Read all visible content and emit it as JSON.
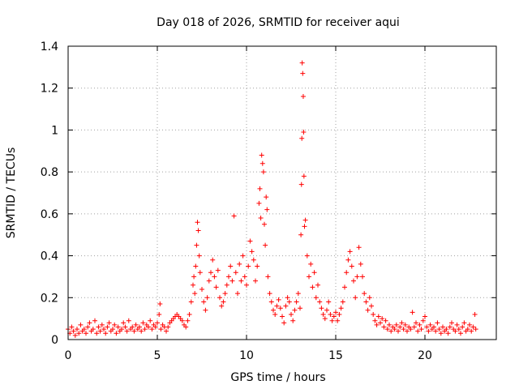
{
  "chart_data": {
    "type": "scatter",
    "title": "Day 018 of 2026, SRMTID for receiver aqui",
    "xlabel": "GPS time / hours",
    "ylabel": "SRMTID / TECUs",
    "xlim": [
      0,
      24
    ],
    "ylim": [
      0,
      1.4
    ],
    "xticks": [
      0,
      5,
      10,
      15,
      20
    ],
    "yticks": [
      0,
      0.2,
      0.4,
      0.6,
      0.8,
      1,
      1.2,
      1.4
    ],
    "xtick_labels": [
      "0",
      "5",
      "10",
      "15",
      "20"
    ],
    "ytick_labels": [
      "0",
      "0.2",
      "0.4",
      "0.6",
      "0.8",
      "1",
      "1.2",
      "1.4"
    ],
    "grid": true,
    "marker": "+",
    "color": "#ff0000",
    "series": [
      {
        "name": "SRMTID",
        "points": [
          [
            0.0,
            0.05
          ],
          [
            0.1,
            0.03
          ],
          [
            0.2,
            0.06
          ],
          [
            0.3,
            0.04
          ],
          [
            0.4,
            0.02
          ],
          [
            0.5,
            0.05
          ],
          [
            0.6,
            0.03
          ],
          [
            0.7,
            0.07
          ],
          [
            0.8,
            0.04
          ],
          [
            0.9,
            0.05
          ],
          [
            1.0,
            0.03
          ],
          [
            1.1,
            0.06
          ],
          [
            1.2,
            0.08
          ],
          [
            1.3,
            0.04
          ],
          [
            1.4,
            0.05
          ],
          [
            1.5,
            0.09
          ],
          [
            1.6,
            0.03
          ],
          [
            1.7,
            0.06
          ],
          [
            1.8,
            0.04
          ],
          [
            1.9,
            0.07
          ],
          [
            2.0,
            0.05
          ],
          [
            2.1,
            0.03
          ],
          [
            2.2,
            0.06
          ],
          [
            2.3,
            0.08
          ],
          [
            2.4,
            0.04
          ],
          [
            2.5,
            0.05
          ],
          [
            2.6,
            0.07
          ],
          [
            2.7,
            0.03
          ],
          [
            2.8,
            0.06
          ],
          [
            2.9,
            0.04
          ],
          [
            3.0,
            0.05
          ],
          [
            3.1,
            0.08
          ],
          [
            3.2,
            0.06
          ],
          [
            3.3,
            0.04
          ],
          [
            3.4,
            0.09
          ],
          [
            3.5,
            0.05
          ],
          [
            3.6,
            0.06
          ],
          [
            3.7,
            0.04
          ],
          [
            3.8,
            0.07
          ],
          [
            3.9,
            0.05
          ],
          [
            4.0,
            0.06
          ],
          [
            4.1,
            0.04
          ],
          [
            4.2,
            0.08
          ],
          [
            4.3,
            0.05
          ],
          [
            4.4,
            0.07
          ],
          [
            4.5,
            0.06
          ],
          [
            4.6,
            0.09
          ],
          [
            4.7,
            0.05
          ],
          [
            4.8,
            0.07
          ],
          [
            4.9,
            0.06
          ],
          [
            5.0,
            0.08
          ],
          [
            5.1,
            0.12
          ],
          [
            5.15,
            0.17
          ],
          [
            5.2,
            0.05
          ],
          [
            5.3,
            0.07
          ],
          [
            5.4,
            0.06
          ],
          [
            5.5,
            0.04
          ],
          [
            5.6,
            0.06
          ],
          [
            5.7,
            0.08
          ],
          [
            5.8,
            0.09
          ],
          [
            5.9,
            0.1
          ],
          [
            6.0,
            0.11
          ],
          [
            6.1,
            0.12
          ],
          [
            6.2,
            0.11
          ],
          [
            6.3,
            0.1
          ],
          [
            6.4,
            0.09
          ],
          [
            6.5,
            0.07
          ],
          [
            6.6,
            0.06
          ],
          [
            6.7,
            0.09
          ],
          [
            6.8,
            0.12
          ],
          [
            6.9,
            0.18
          ],
          [
            7.0,
            0.26
          ],
          [
            7.05,
            0.3
          ],
          [
            7.1,
            0.22
          ],
          [
            7.15,
            0.35
          ],
          [
            7.2,
            0.45
          ],
          [
            7.25,
            0.56
          ],
          [
            7.3,
            0.52
          ],
          [
            7.35,
            0.4
          ],
          [
            7.4,
            0.32
          ],
          [
            7.5,
            0.24
          ],
          [
            7.6,
            0.18
          ],
          [
            7.7,
            0.14
          ],
          [
            7.8,
            0.2
          ],
          [
            7.9,
            0.28
          ],
          [
            8.0,
            0.32
          ],
          [
            8.1,
            0.38
          ],
          [
            8.2,
            0.3
          ],
          [
            8.3,
            0.25
          ],
          [
            8.4,
            0.33
          ],
          [
            8.5,
            0.2
          ],
          [
            8.6,
            0.16
          ],
          [
            8.7,
            0.18
          ],
          [
            8.8,
            0.22
          ],
          [
            8.9,
            0.26
          ],
          [
            9.0,
            0.3
          ],
          [
            9.1,
            0.35
          ],
          [
            9.2,
            0.28
          ],
          [
            9.3,
            0.59
          ],
          [
            9.4,
            0.32
          ],
          [
            9.5,
            0.22
          ],
          [
            9.6,
            0.36
          ],
          [
            9.7,
            0.28
          ],
          [
            9.8,
            0.4
          ],
          [
            9.9,
            0.3
          ],
          [
            10.0,
            0.26
          ],
          [
            10.1,
            0.35
          ],
          [
            10.2,
            0.47
          ],
          [
            10.3,
            0.42
          ],
          [
            10.4,
            0.38
          ],
          [
            10.5,
            0.28
          ],
          [
            10.6,
            0.35
          ],
          [
            10.7,
            0.65
          ],
          [
            10.75,
            0.72
          ],
          [
            10.8,
            0.58
          ],
          [
            10.85,
            0.88
          ],
          [
            10.9,
            0.84
          ],
          [
            10.95,
            0.8
          ],
          [
            11.0,
            0.55
          ],
          [
            11.05,
            0.45
          ],
          [
            11.1,
            0.68
          ],
          [
            11.15,
            0.62
          ],
          [
            11.2,
            0.3
          ],
          [
            11.3,
            0.22
          ],
          [
            11.4,
            0.18
          ],
          [
            11.5,
            0.14
          ],
          [
            11.6,
            0.12
          ],
          [
            11.7,
            0.16
          ],
          [
            11.8,
            0.19
          ],
          [
            11.9,
            0.15
          ],
          [
            12.0,
            0.11
          ],
          [
            12.1,
            0.08
          ],
          [
            12.2,
            0.16
          ],
          [
            12.3,
            0.2
          ],
          [
            12.4,
            0.18
          ],
          [
            12.5,
            0.12
          ],
          [
            12.6,
            0.09
          ],
          [
            12.7,
            0.14
          ],
          [
            12.8,
            0.18
          ],
          [
            12.9,
            0.22
          ],
          [
            13.0,
            0.15
          ],
          [
            13.05,
            0.5
          ],
          [
            13.08,
            0.74
          ],
          [
            13.1,
            0.96
          ],
          [
            13.12,
            1.32
          ],
          [
            13.15,
            1.27
          ],
          [
            13.18,
            1.16
          ],
          [
            13.2,
            0.99
          ],
          [
            13.22,
            0.78
          ],
          [
            13.25,
            0.54
          ],
          [
            13.3,
            0.57
          ],
          [
            13.4,
            0.4
          ],
          [
            13.5,
            0.3
          ],
          [
            13.6,
            0.36
          ],
          [
            13.7,
            0.25
          ],
          [
            13.8,
            0.32
          ],
          [
            13.9,
            0.2
          ],
          [
            14.0,
            0.26
          ],
          [
            14.1,
            0.18
          ],
          [
            14.2,
            0.15
          ],
          [
            14.3,
            0.12
          ],
          [
            14.4,
            0.1
          ],
          [
            14.5,
            0.14
          ],
          [
            14.6,
            0.18
          ],
          [
            14.7,
            0.12
          ],
          [
            14.8,
            0.09
          ],
          [
            14.9,
            0.11
          ],
          [
            15.0,
            0.13
          ],
          [
            15.1,
            0.09
          ],
          [
            15.2,
            0.12
          ],
          [
            15.3,
            0.15
          ],
          [
            15.4,
            0.18
          ],
          [
            15.5,
            0.25
          ],
          [
            15.6,
            0.32
          ],
          [
            15.7,
            0.38
          ],
          [
            15.8,
            0.42
          ],
          [
            15.9,
            0.35
          ],
          [
            16.0,
            0.28
          ],
          [
            16.1,
            0.2
          ],
          [
            16.2,
            0.3
          ],
          [
            16.3,
            0.44
          ],
          [
            16.4,
            0.36
          ],
          [
            16.5,
            0.3
          ],
          [
            16.6,
            0.22
          ],
          [
            16.7,
            0.18
          ],
          [
            16.8,
            0.14
          ],
          [
            16.9,
            0.2
          ],
          [
            17.0,
            0.16
          ],
          [
            17.1,
            0.12
          ],
          [
            17.2,
            0.09
          ],
          [
            17.3,
            0.07
          ],
          [
            17.4,
            0.11
          ],
          [
            17.5,
            0.08
          ],
          [
            17.6,
            0.1
          ],
          [
            17.7,
            0.06
          ],
          [
            17.8,
            0.09
          ],
          [
            17.9,
            0.05
          ],
          [
            18.0,
            0.07
          ],
          [
            18.1,
            0.04
          ],
          [
            18.2,
            0.06
          ],
          [
            18.3,
            0.05
          ],
          [
            18.4,
            0.07
          ],
          [
            18.5,
            0.04
          ],
          [
            18.6,
            0.06
          ],
          [
            18.7,
            0.08
          ],
          [
            18.8,
            0.05
          ],
          [
            18.9,
            0.07
          ],
          [
            19.0,
            0.04
          ],
          [
            19.1,
            0.06
          ],
          [
            19.2,
            0.05
          ],
          [
            19.3,
            0.13
          ],
          [
            19.4,
            0.06
          ],
          [
            19.5,
            0.08
          ],
          [
            19.6,
            0.04
          ],
          [
            19.7,
            0.07
          ],
          [
            19.8,
            0.05
          ],
          [
            19.9,
            0.09
          ],
          [
            20.0,
            0.11
          ],
          [
            20.1,
            0.06
          ],
          [
            20.2,
            0.04
          ],
          [
            20.3,
            0.07
          ],
          [
            20.4,
            0.05
          ],
          [
            20.5,
            0.06
          ],
          [
            20.6,
            0.04
          ],
          [
            20.7,
            0.08
          ],
          [
            20.8,
            0.05
          ],
          [
            20.9,
            0.03
          ],
          [
            21.0,
            0.06
          ],
          [
            21.1,
            0.04
          ],
          [
            21.2,
            0.05
          ],
          [
            21.3,
            0.03
          ],
          [
            21.4,
            0.06
          ],
          [
            21.5,
            0.08
          ],
          [
            21.6,
            0.05
          ],
          [
            21.7,
            0.04
          ],
          [
            21.8,
            0.07
          ],
          [
            21.9,
            0.05
          ],
          [
            22.0,
            0.03
          ],
          [
            22.1,
            0.06
          ],
          [
            22.2,
            0.08
          ],
          [
            22.3,
            0.04
          ],
          [
            22.4,
            0.05
          ],
          [
            22.5,
            0.07
          ],
          [
            22.6,
            0.04
          ],
          [
            22.7,
            0.06
          ],
          [
            22.8,
            0.12
          ],
          [
            22.85,
            0.05
          ]
        ]
      }
    ]
  }
}
